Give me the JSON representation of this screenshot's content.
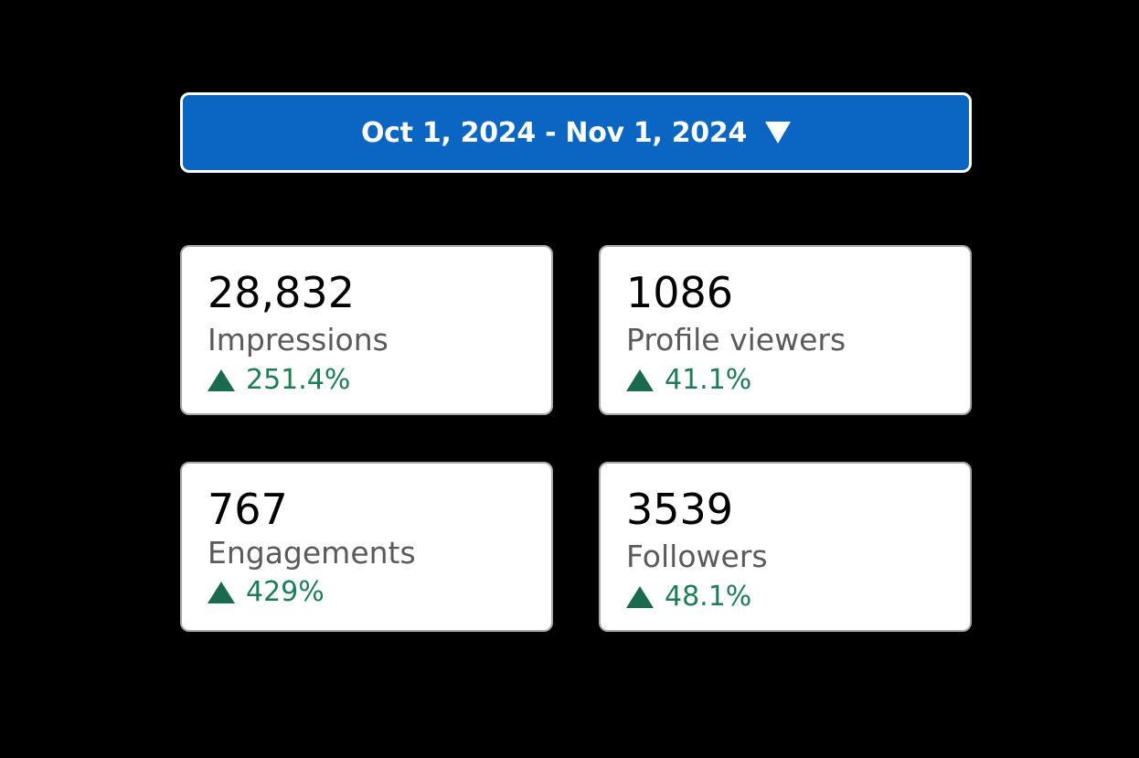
{
  "date_range": {
    "label": "Oct 1, 2024 - Nov 1, 2024",
    "caret_icon": "caret-down-icon"
  },
  "colors": {
    "background": "#000000",
    "accent": "#0a66c2",
    "positive": "#1d7e55"
  },
  "metrics": [
    {
      "value": "28,832",
      "label": "Impressions",
      "change": "251.4%",
      "trend_icon": "triangle-up-icon"
    },
    {
      "value": "1086",
      "label": "Profile viewers",
      "change": "41.1%",
      "trend_icon": "triangle-up-icon"
    },
    {
      "value": "767",
      "label": "Engagements",
      "change": "429%",
      "trend_icon": "triangle-up-icon"
    },
    {
      "value": "3539",
      "label": "Followers",
      "change": "48.1%",
      "trend_icon": "triangle-up-icon"
    }
  ]
}
